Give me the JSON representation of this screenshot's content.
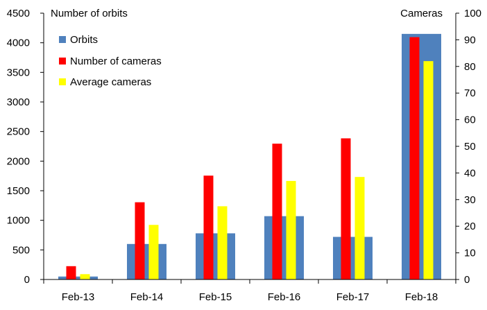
{
  "chart_data": {
    "type": "bar",
    "categories": [
      "Feb-13",
      "Feb-14",
      "Feb-15",
      "Feb-16",
      "Feb-17",
      "Feb-18"
    ],
    "series": [
      {
        "name": "Orbits",
        "axis": "left",
        "color": "#4f81bd",
        "values": [
          50,
          600,
          780,
          1070,
          720,
          4150
        ]
      },
      {
        "name": "Number of cameras",
        "axis": "right",
        "color": "#ff0000",
        "values": [
          5,
          29,
          39,
          51,
          53,
          91
        ]
      },
      {
        "name": "Average cameras",
        "axis": "right",
        "color": "#ffff00",
        "values": [
          2,
          20.5,
          27.5,
          37,
          38.5,
          82
        ]
      }
    ],
    "ylabel_left": "Number of orbits",
    "ylabel_right": "Cameras",
    "ylim_left": [
      0,
      4500
    ],
    "ylim_right": [
      0,
      100
    ],
    "yticks_left": [
      "0",
      "500",
      "1000",
      "1500",
      "2000",
      "2500",
      "3000",
      "3500",
      "4000",
      "4500"
    ],
    "yticks_right": [
      "0",
      "10",
      "20",
      "30",
      "40",
      "50",
      "60",
      "70",
      "80",
      "90",
      "100"
    ],
    "legend": [
      "Orbits",
      "Number of cameras",
      "Average cameras"
    ],
    "legend_position": "top-left",
    "grid": false
  }
}
